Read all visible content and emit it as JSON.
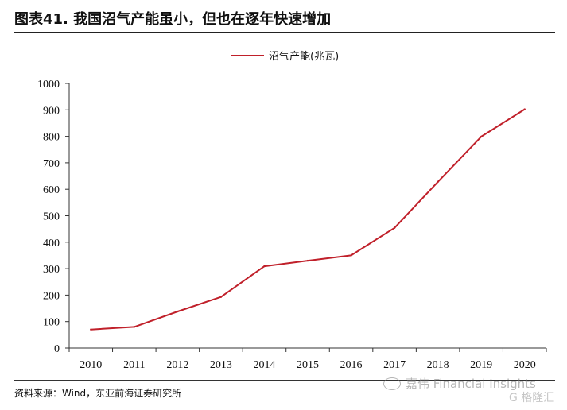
{
  "header": {
    "title": "图表41. 我国沼气产能虽小，但也在逐年快速增加"
  },
  "footer": {
    "source": "资料来源：Wind，东亚前海证券研究所"
  },
  "watermark": {
    "brand": "嘉伟 Financial Insights",
    "logo_text": "G 格隆汇"
  },
  "colors": {
    "line": "#c0202a",
    "axis": "#333333"
  },
  "chart_data": {
    "type": "line",
    "title": "",
    "xlabel": "",
    "ylabel": "",
    "legend_position": "top-center",
    "grid": false,
    "categories": [
      "2010",
      "2011",
      "2012",
      "2013",
      "2014",
      "2015",
      "2016",
      "2017",
      "2018",
      "2019",
      "2020"
    ],
    "series": [
      {
        "name": "沼气产能(兆瓦)",
        "values": [
          70,
          80,
          138,
          193,
          309,
          330,
          350,
          454,
          628,
          799,
          902
        ]
      }
    ],
    "ylim": [
      0,
      1000
    ],
    "yticks": [
      0,
      100,
      200,
      300,
      400,
      500,
      600,
      700,
      800,
      900,
      1000
    ]
  }
}
